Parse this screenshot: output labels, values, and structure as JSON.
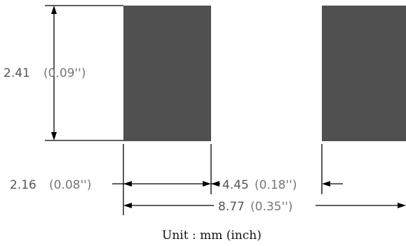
{
  "dimensions": {
    "pad_height": {
      "value": "2.41",
      "inch": "(0.09'')"
    },
    "pad_width": {
      "value": "2.16",
      "inch": "(0.08'')"
    },
    "gap": {
      "value": "4.45",
      "inch": "(0.18'')"
    },
    "overall": {
      "value": "8.77",
      "inch": "(0.35'')"
    }
  },
  "unit_label": "Unit : mm (inch)",
  "colors": {
    "pad": "#505050",
    "line": "#000000"
  }
}
